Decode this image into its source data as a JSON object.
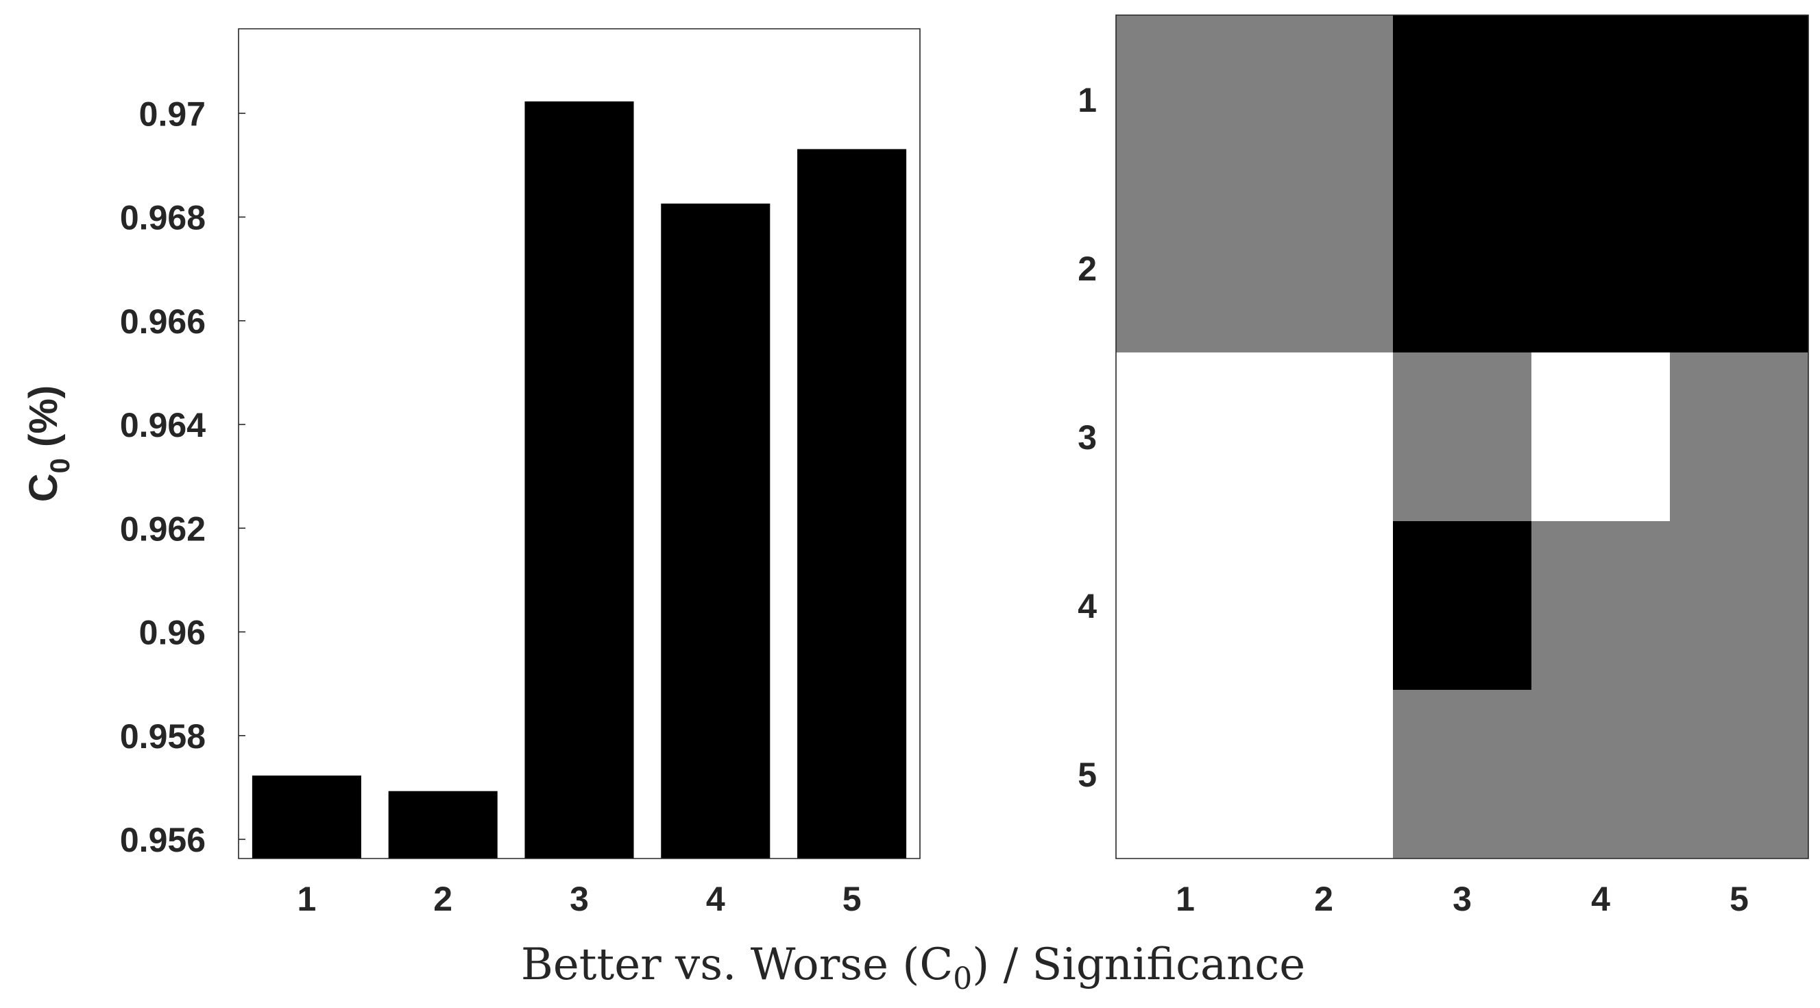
{
  "chart_data": [
    {
      "type": "bar",
      "categories": [
        "1",
        "2",
        "3",
        "4",
        "5"
      ],
      "values": [
        0.95723,
        0.95693,
        0.97023,
        0.96826,
        0.96931
      ],
      "ylabel_main": "C",
      "ylabel_sub": "0",
      "ylabel_rest": " (%)",
      "xlabel": "",
      "ylim": [
        0.95563,
        0.97163
      ],
      "yticks": [
        "0.956",
        "0.958",
        "0.96",
        "0.962",
        "0.964",
        "0.966",
        "0.968",
        "0.97"
      ],
      "ytick_values": [
        0.956,
        0.958,
        0.96,
        0.962,
        0.964,
        0.966,
        0.968,
        0.97
      ],
      "bar_color": "#000000",
      "grid": false
    },
    {
      "type": "heatmap",
      "x_categories": [
        "1",
        "2",
        "3",
        "4",
        "5"
      ],
      "y_categories": [
        "1",
        "2",
        "3",
        "4",
        "5"
      ],
      "values": [
        [
          0.5,
          0.5,
          0,
          0,
          0
        ],
        [
          0.5,
          0.5,
          0,
          0,
          0
        ],
        [
          1,
          1,
          0.5,
          1,
          0.5
        ],
        [
          1,
          1,
          0,
          0.5,
          0.5
        ],
        [
          1,
          1,
          0.5,
          0.5,
          0.5
        ]
      ],
      "colors": {
        "0": "#000000",
        "0.5": "#808080",
        "1": "#ffffff"
      },
      "grid": false
    }
  ],
  "figure": {
    "xlabel_text_1": "Better vs. Worse (C",
    "xlabel_sub": "0",
    "xlabel_text_2": ") / Significance"
  }
}
